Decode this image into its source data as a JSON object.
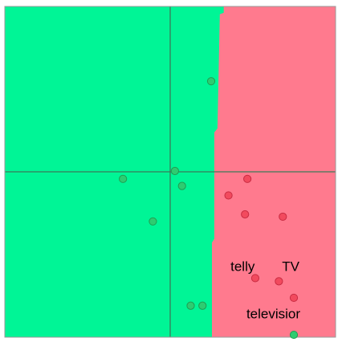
{
  "chart_data": {
    "type": "scatter",
    "title": "",
    "xlabel": "",
    "ylabel": "",
    "xlim": [
      -2.1,
      2.1
    ],
    "ylim": [
      -2.1,
      2.1
    ],
    "grid": false,
    "axes_lines": {
      "x": 0,
      "y": 0
    },
    "colors": {
      "region_a": "#00f596",
      "region_b": "#ff7a8e",
      "point_a_fill": "#2ecc71",
      "point_a_stroke": "#1e9e52",
      "point_b_fill": "#f24a5e",
      "point_b_stroke": "#c82c42",
      "axis_line": "#3a7a5a",
      "frame": "#9a9a9a"
    },
    "decision_boundary": [
      {
        "y": 2.1,
        "x": 0.68
      },
      {
        "y": 2.02,
        "x": 0.68
      },
      {
        "y": 2.0,
        "x": 0.63
      },
      {
        "y": 0.55,
        "x": 0.6
      },
      {
        "y": 0.5,
        "x": 0.56
      },
      {
        "y": -0.85,
        "x": 0.56
      },
      {
        "y": -0.9,
        "x": 0.53
      },
      {
        "y": -2.1,
        "x": 0.53
      }
    ],
    "series": [
      {
        "points": [
          {
            "x": 0.52,
            "y": 1.15
          },
          {
            "x": 0.06,
            "y": 0.01
          },
          {
            "x": -0.6,
            "y": -0.09
          },
          {
            "x": 0.15,
            "y": -0.18
          },
          {
            "x": -0.22,
            "y": -0.63
          },
          {
            "x": 0.26,
            "y": -1.7
          },
          {
            "x": 0.41,
            "y": -1.7
          },
          {
            "x": 1.57,
            "y": -2.07
          }
        ]
      },
      {
        "points": [
          {
            "x": 0.98,
            "y": -0.09
          },
          {
            "x": 0.74,
            "y": -0.3
          },
          {
            "x": 0.95,
            "y": -0.54
          },
          {
            "x": 1.43,
            "y": -0.57
          },
          {
            "x": 1.08,
            "y": -1.35
          },
          {
            "x": 1.38,
            "y": -1.39
          },
          {
            "x": 1.57,
            "y": -1.6
          }
        ]
      }
    ],
    "annotations": [
      {
        "text": "telly",
        "x": 0.92,
        "y": -1.2
      },
      {
        "text": "TV",
        "x": 1.53,
        "y": -1.2
      },
      {
        "text": "televisior",
        "x": 1.31,
        "y": -1.8
      }
    ]
  }
}
